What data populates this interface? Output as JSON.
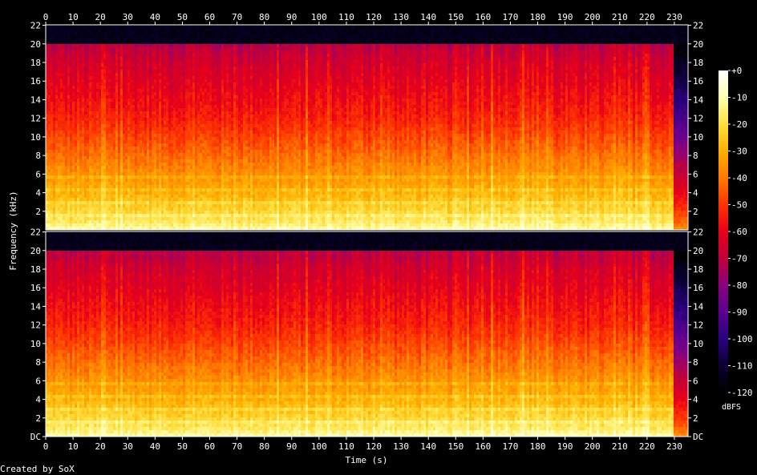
{
  "chart_data": {
    "type": "heatmap",
    "subtype": "spectrogram",
    "channels": 2,
    "xlabel": "Time (s)",
    "ylabel": "Frequency (kHz)",
    "x_ticks": [
      0,
      10,
      20,
      30,
      40,
      50,
      60,
      70,
      80,
      90,
      100,
      110,
      120,
      130,
      140,
      150,
      160,
      170,
      180,
      190,
      200,
      210,
      220,
      230
    ],
    "xlim": [
      0,
      235
    ],
    "y_ticks_top": [
      "22",
      "20",
      "18",
      "16",
      "14",
      "12",
      "10",
      "8",
      "6",
      "4",
      "2"
    ],
    "y_ticks_bottom": [
      "22",
      "20",
      "18",
      "16",
      "14",
      "12",
      "10",
      "8",
      "6",
      "4",
      "2",
      "DC"
    ],
    "ylim_khz": [
      0,
      22.05
    ],
    "content_cutoff_khz": 20,
    "content_end_s": 229.5,
    "colorbar": {
      "unit": "dBFS",
      "ticks": [
        "+0",
        "-10",
        "-20",
        "-30",
        "-40",
        "-50",
        "-60",
        "-70",
        "-80",
        "-90",
        "-100",
        "-110",
        "-120"
      ],
      "range": [
        -120,
        0
      ],
      "colors": [
        "#000000",
        "#0a0033",
        "#2a0080",
        "#5a0090",
        "#8a0080",
        "#c0003a",
        "#e8001a",
        "#ff3300",
        "#ff7a00",
        "#ffb000",
        "#ffe040",
        "#ffffb0",
        "#ffffff"
      ]
    },
    "level_by_freq_khz": [
      {
        "f": 0,
        "db": -10
      },
      {
        "f": 1,
        "db": -18
      },
      {
        "f": 2,
        "db": -22
      },
      {
        "f": 3,
        "db": -26
      },
      {
        "f": 4,
        "db": -30
      },
      {
        "f": 6,
        "db": -36
      },
      {
        "f": 8,
        "db": -42
      },
      {
        "f": 10,
        "db": -48
      },
      {
        "f": 12,
        "db": -54
      },
      {
        "f": 14,
        "db": -58
      },
      {
        "f": 16,
        "db": -62
      },
      {
        "f": 18,
        "db": -66
      },
      {
        "f": 20,
        "db": -72
      }
    ]
  },
  "footer": {
    "credit": "Created by SoX"
  }
}
